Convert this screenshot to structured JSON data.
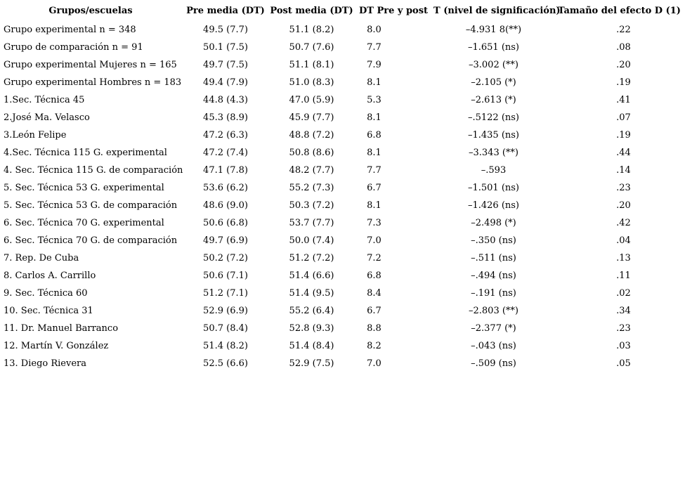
{
  "page": {
    "background_color": "#ffffff",
    "text_color": "#000000"
  },
  "table": {
    "columns": [
      "Grupos/escuelas",
      "Pre media (DT)",
      "Post media (DT)",
      "DT Pre y post",
      "T (nivel de significación)",
      "Tamaño del efecto D (1)"
    ],
    "rows": [
      [
        "Grupo experimental n = 348",
        "49.5 (7.7)",
        "51.1 (8.2)",
        "8.0",
        "–4.931 8(**)",
        ".22"
      ],
      [
        "Grupo de comparación n = 91",
        "50.1 (7.5)",
        "50.7 (7.6)",
        "7.7",
        "–1.651 (ns)",
        ".08"
      ],
      [
        "Grupo experimental Mujeres n = 165",
        "49.7 (7.5)",
        "51.1 (8.1)",
        "7.9",
        "–3.002 (**)",
        ".20"
      ],
      [
        "Grupo experimental Hombres n = 183",
        "49.4 (7.9)",
        "51.0 (8.3)",
        "8.1",
        "–2.105 (*)",
        ".19"
      ],
      [
        "1.Sec. Técnica 45",
        "44.8 (4.3)",
        "47.0 (5.9)",
        "5.3",
        "–2.613 (*)",
        ".41"
      ],
      [
        "2.José Ma. Velasco",
        "45.3 (8.9)",
        "45.9 (7.7)",
        "8.1",
        "–.5122 (ns)",
        ".07"
      ],
      [
        "3.León Felipe",
        "47.2 (6.3)",
        "48.8 (7.2)",
        "6.8",
        "–1.435 (ns)",
        ".19"
      ],
      [
        "4.Sec. Técnica 115 G. experimental",
        "47.2 (7.4)",
        "50.8 (8.6)",
        "8.1",
        "–3.343 (**)",
        ".44"
      ],
      [
        "4. Sec. Técnica 115 G. de comparación",
        "47.1 (7.8)",
        "48.2 (7.7)",
        "7.7",
        "–.593",
        ".14"
      ],
      [
        "5. Sec. Técnica 53 G. experimental",
        "53.6 (6.2)",
        "55.2 (7.3)",
        "6.7",
        "–1.501 (ns)",
        ".23"
      ],
      [
        "5. Sec. Técnica 53 G. de comparación",
        "48.6 (9.0)",
        "50.3 (7.2)",
        "8.1",
        "–1.426 (ns)",
        ".20"
      ],
      [
        "6. Sec. Técnica 70 G. experimental",
        "50.6 (6.8)",
        "53.7 (7.7)",
        "7.3",
        "–2.498 (*)",
        ".42"
      ],
      [
        "6. Sec. Técnica 70 G. de comparación",
        "49.7 (6.9)",
        "50.0 (7.4)",
        "7.0",
        "–.350 (ns)",
        ".04"
      ],
      [
        "7. Rep. De Cuba",
        "50.2 (7.2)",
        "51.2 (7.2)",
        "7.2",
        "–.511 (ns)",
        ".13"
      ],
      [
        "8. Carlos A. Carrillo",
        "50.6 (7.1)",
        "51.4 (6.6)",
        "6.8",
        "–.494 (ns)",
        ".11"
      ],
      [
        "9. Sec. Técnica 60",
        "51.2 (7.1)",
        "51.4 (9.5)",
        "8.4",
        "–.191 (ns)",
        ".02"
      ],
      [
        "10. Sec. Técnica 31",
        "52.9 (6.9)",
        "55.2 (6.4)",
        "6.7",
        "–2.803 (**)",
        ".34"
      ],
      [
        "11. Dr. Manuel Barranco",
        "50.7 (8.4)",
        "52.8 (9.3)",
        "8.8",
        "–2.377 (*)",
        ".23"
      ],
      [
        "12. Martín V. González",
        "51.4 (8.2)",
        "51.4 (8.4)",
        "8.2",
        "–.043 (ns)",
        ".03"
      ],
      [
        "13. Diego Rievera",
        "52.5 (6.6)",
        "52.9 (7.5)",
        "7.0",
        "–.509 (ns)",
        ".05"
      ]
    ]
  }
}
